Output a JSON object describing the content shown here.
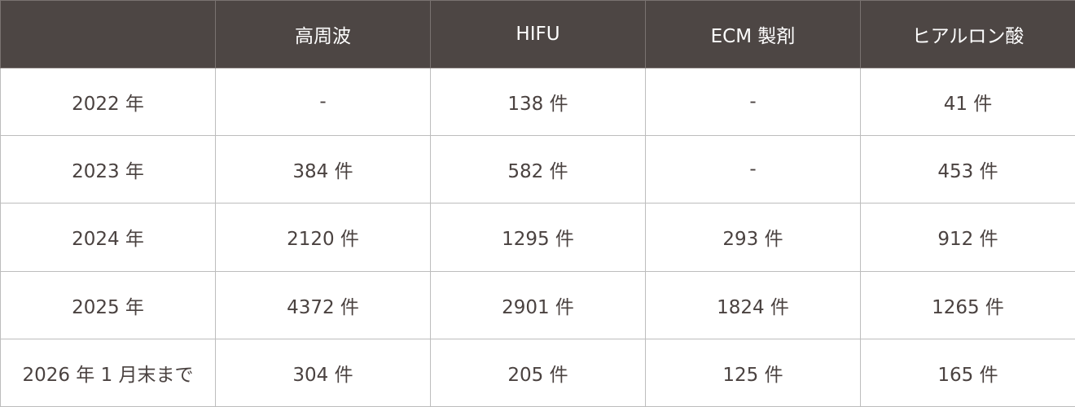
{
  "colors": {
    "header_bg": "#4d4644",
    "header_text": "#ffffff",
    "body_text": "#4a4240",
    "border": "#bdbdbd"
  },
  "table": {
    "headers": [
      "",
      "高周波",
      "HIFU",
      "ECM 製剤",
      "ヒアルロン酸"
    ],
    "rows": [
      [
        "2022 年",
        "-",
        "138 件",
        "-",
        "41 件"
      ],
      [
        "2023 年",
        "384 件",
        "582 件",
        "-",
        "453 件"
      ],
      [
        "2024 年",
        "2120 件",
        "1295 件",
        "293 件",
        "912 件"
      ],
      [
        "2025 年",
        "4372 件",
        "2901 件",
        "1824 件",
        "1265 件"
      ],
      [
        "2026 年 1 月末まで",
        "304 件",
        "205 件",
        "125 件",
        "165 件"
      ]
    ]
  }
}
